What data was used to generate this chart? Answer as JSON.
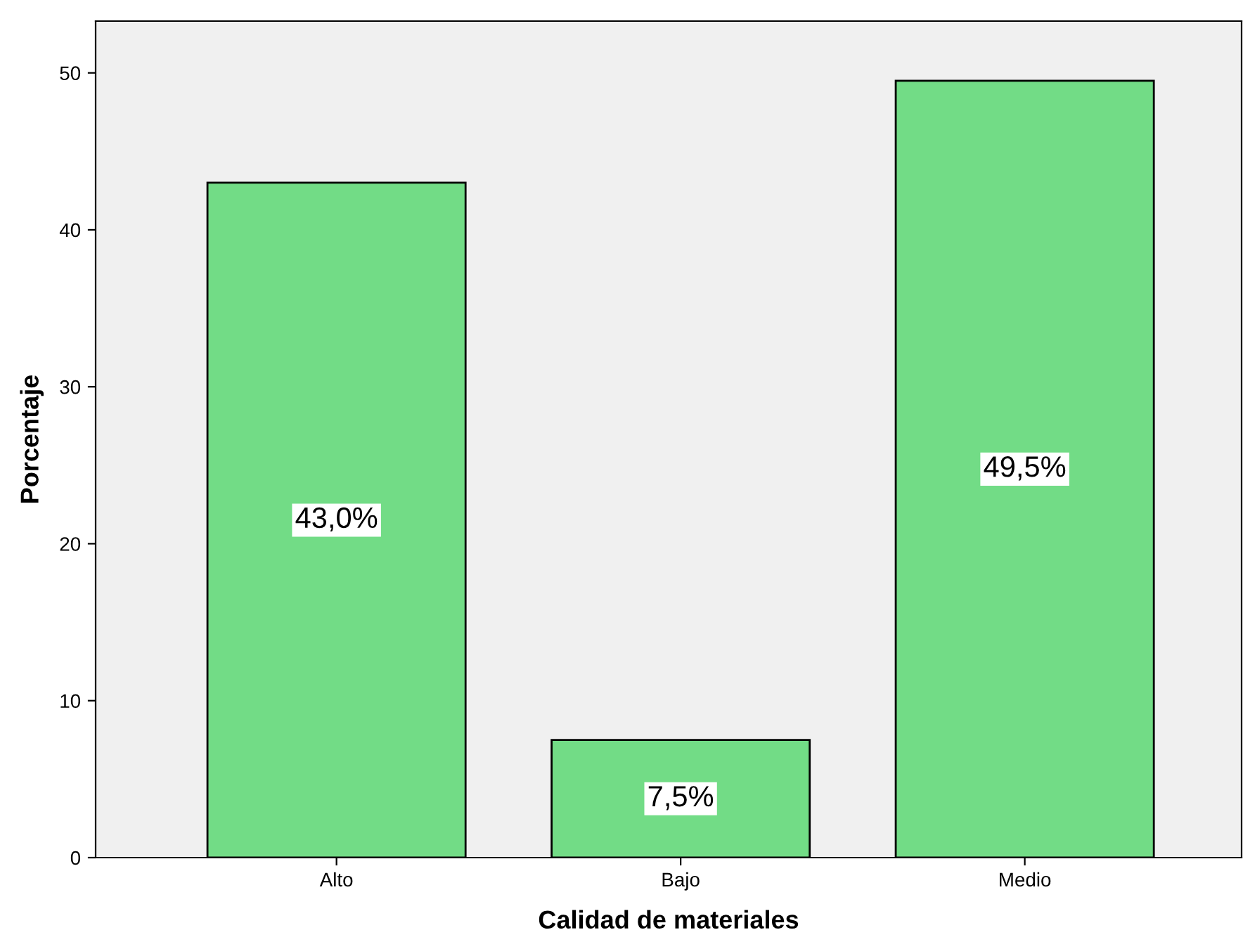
{
  "chart_data": {
    "type": "bar",
    "xlabel": "Calidad de materiales",
    "ylabel": "Porcentaje",
    "categories": [
      "Alto",
      "Bajo",
      "Medio"
    ],
    "values": [
      43.0,
      7.5,
      49.5
    ],
    "value_labels": [
      "43,0%",
      "7,5%",
      "49,5%"
    ],
    "color": "#72dc86",
    "ylim": [
      0,
      53.3
    ],
    "yticks": [
      0,
      10,
      20,
      30,
      40,
      50
    ],
    "grid": false
  }
}
